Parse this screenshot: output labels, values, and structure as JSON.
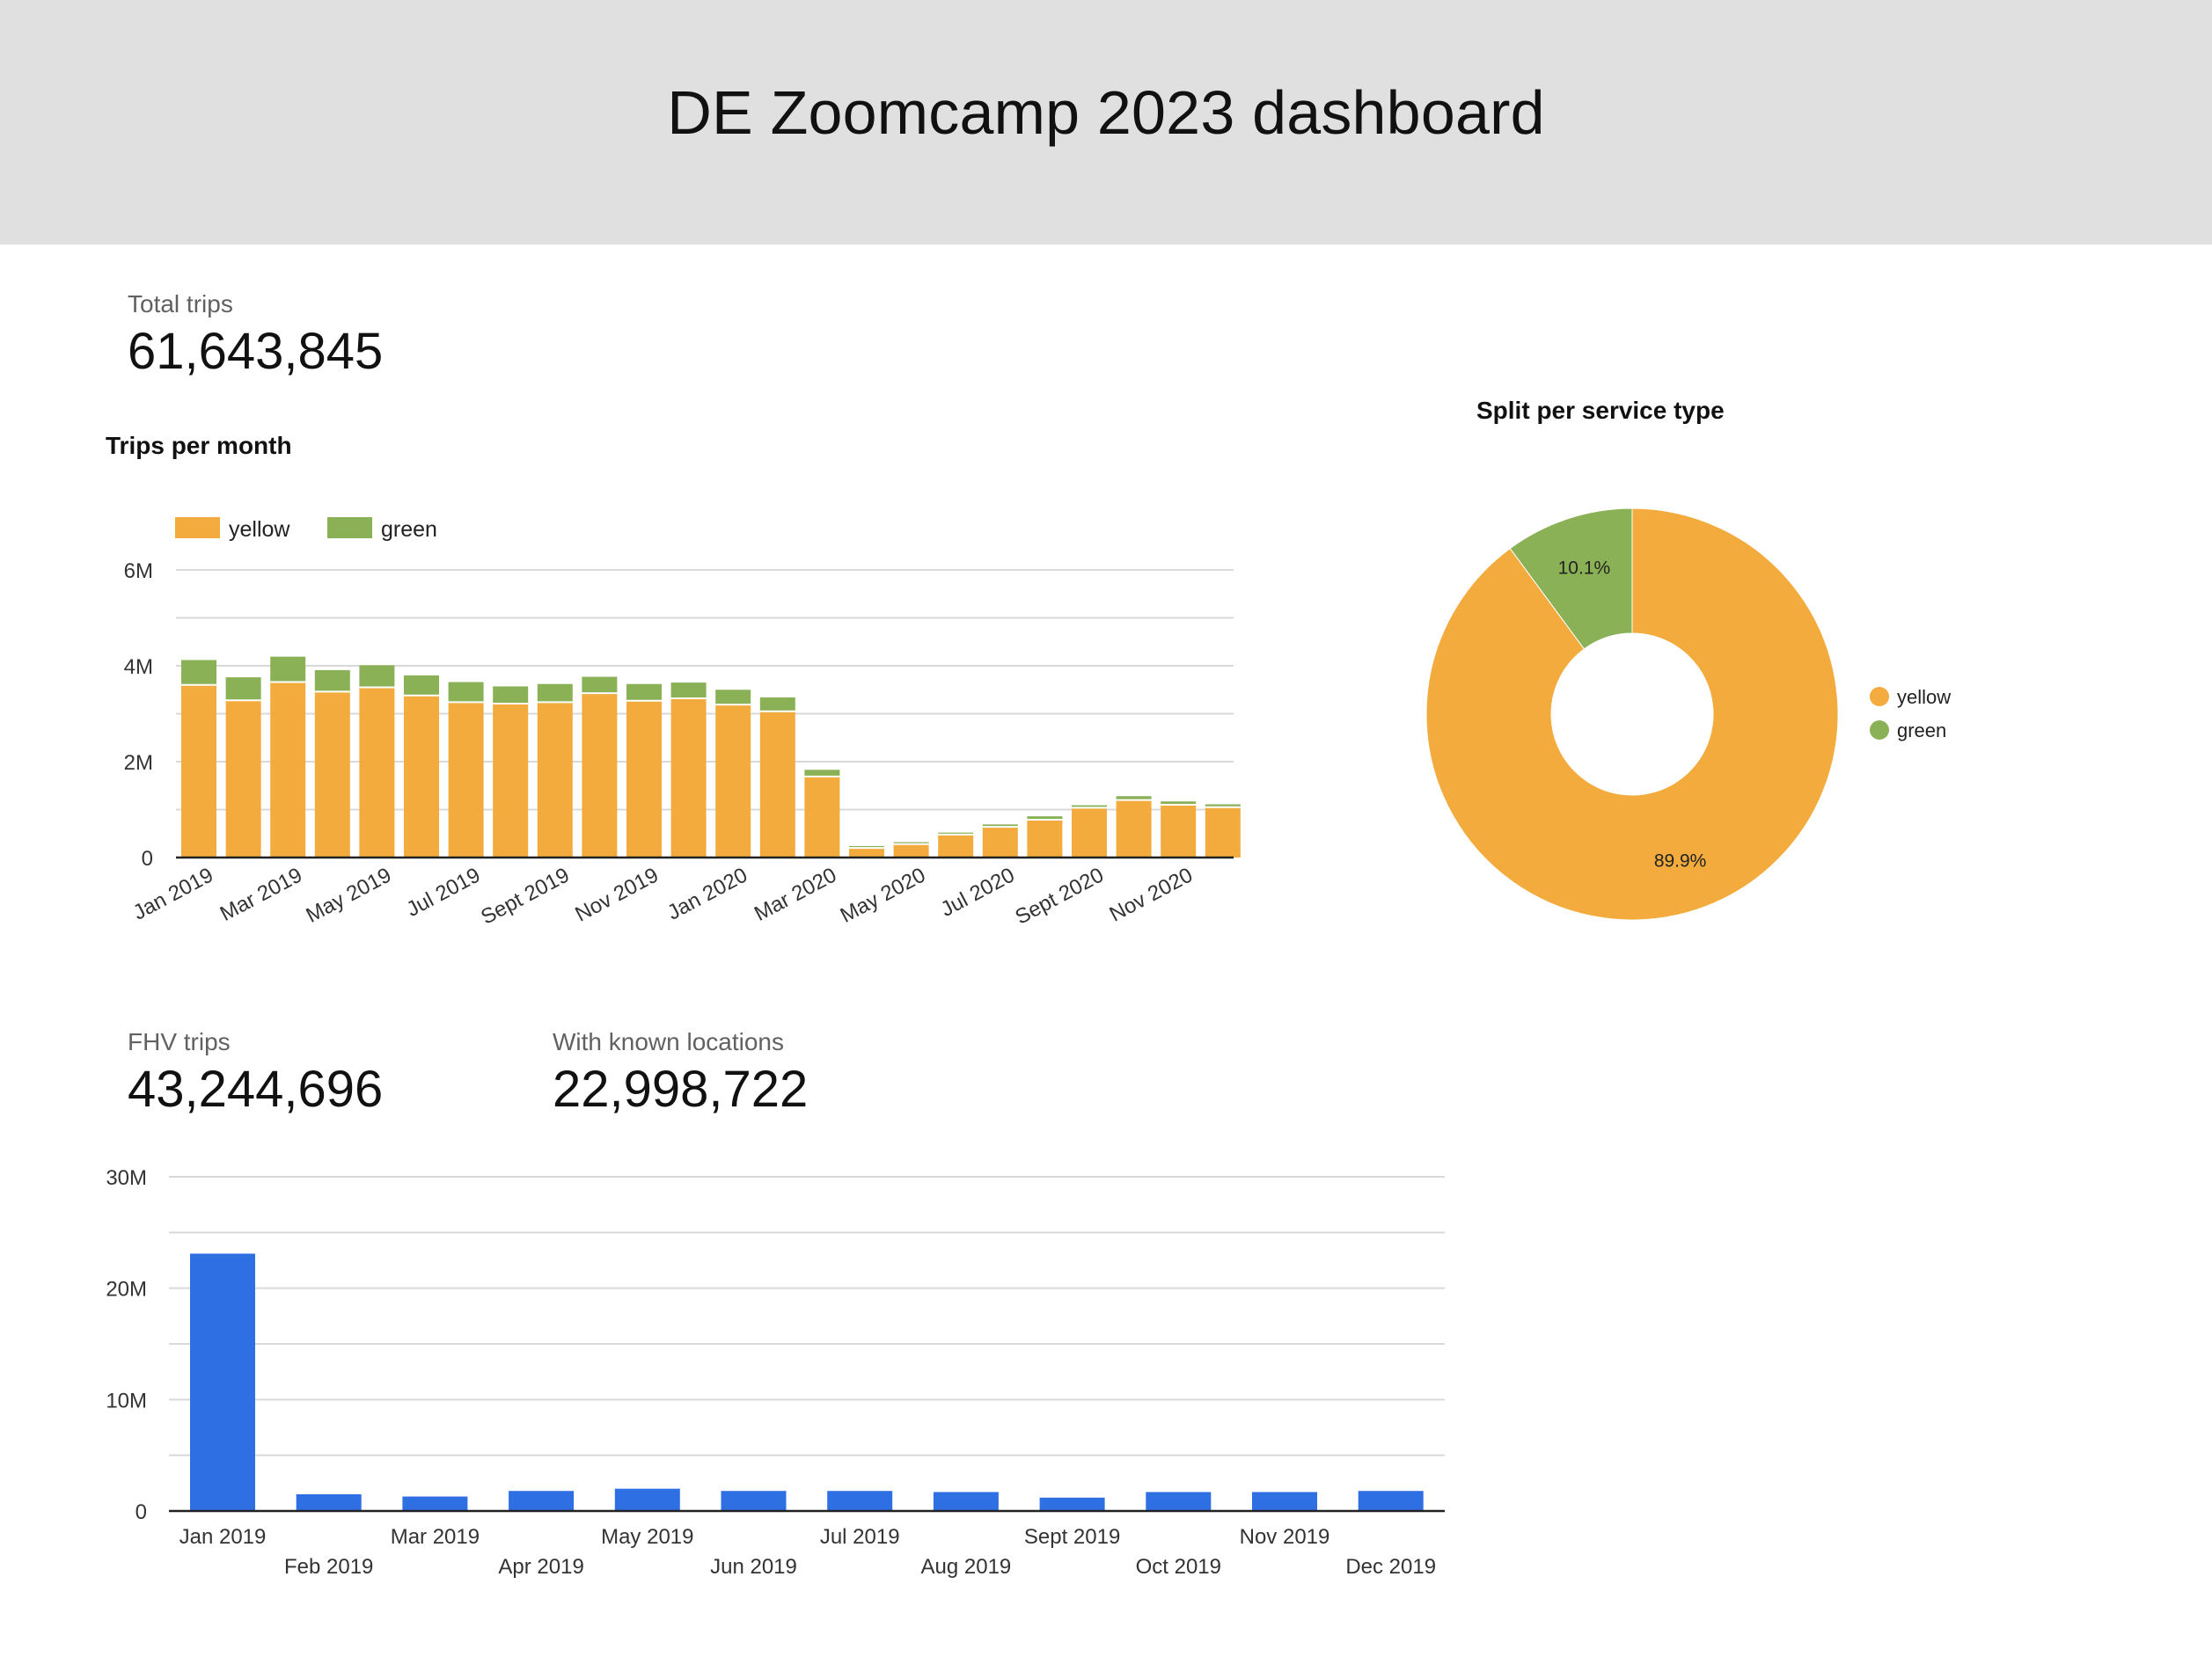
{
  "header": {
    "title": "DE Zoomcamp 2023 dashboard"
  },
  "kpis": {
    "total_trips": {
      "label": "Total trips",
      "value": "61,643,845"
    },
    "fhv_trips": {
      "label": "FHV trips",
      "value": "43,244,696"
    },
    "known_locations": {
      "label": "With known locations",
      "value": "22,998,722"
    }
  },
  "colors": {
    "yellow": "#f2ab3c",
    "green": "#8bb156",
    "blue": "#2f6fe4",
    "grid": "#d9d9d9",
    "axis": "#222222"
  },
  "chart_data": [
    {
      "id": "trips_per_month",
      "type": "bar",
      "stacked": true,
      "title": "Trips per month",
      "legend_position": "top-left",
      "ylim": [
        0,
        6000000
      ],
      "yticks": [
        0,
        2000000,
        4000000,
        6000000
      ],
      "ytick_labels": [
        "0",
        "2M",
        "4M",
        "6M"
      ],
      "grid": true,
      "categories": [
        "Jan 2019",
        "Feb 2019",
        "Mar 2019",
        "Apr 2019",
        "May 2019",
        "Jun 2019",
        "Jul 2019",
        "Aug 2019",
        "Sept 2019",
        "Oct 2019",
        "Nov 2019",
        "Dec 2019",
        "Jan 2020",
        "Feb 2020",
        "Mar 2020",
        "Apr 2020",
        "May 2020",
        "Jun 2020",
        "Jul 2020",
        "Aug 2020",
        "Sept 2020",
        "Oct 2020",
        "Nov 2020",
        "Dec 2020"
      ],
      "tick_labels": [
        "Jan 2019",
        "",
        "Mar 2019",
        "",
        "May 2019",
        "",
        "Jul 2019",
        "",
        "Sept 2019",
        "",
        "Nov 2019",
        "",
        "Jan 2020",
        "",
        "Mar 2020",
        "",
        "May 2020",
        "",
        "Jul 2020",
        "",
        "Sept 2020",
        "",
        "Nov 2020",
        ""
      ],
      "series": [
        {
          "name": "yellow",
          "values": [
            3600000,
            3280000,
            3660000,
            3460000,
            3550000,
            3380000,
            3240000,
            3210000,
            3240000,
            3430000,
            3270000,
            3320000,
            3190000,
            3050000,
            1690000,
            200000,
            280000,
            480000,
            640000,
            790000,
            1040000,
            1200000,
            1100000,
            1050000
          ]
        },
        {
          "name": "green",
          "values": [
            520000,
            480000,
            530000,
            450000,
            460000,
            420000,
            420000,
            360000,
            380000,
            340000,
            350000,
            330000,
            310000,
            290000,
            140000,
            40000,
            40000,
            40000,
            50000,
            70000,
            50000,
            80000,
            70000,
            60000
          ]
        }
      ]
    },
    {
      "id": "split_per_service_type",
      "type": "pie",
      "donut": true,
      "title": "Split per service type",
      "legend_position": "right",
      "series": [
        {
          "name": "yellow",
          "value": 89.9,
          "label": "89.9%"
        },
        {
          "name": "green",
          "value": 10.1,
          "label": "10.1%"
        }
      ]
    },
    {
      "id": "fhv_trips_per_month",
      "type": "bar",
      "title": "",
      "ylim": [
        0,
        30000000
      ],
      "yticks": [
        0,
        10000000,
        20000000,
        30000000
      ],
      "ytick_labels": [
        "0",
        "10M",
        "20M",
        "30M"
      ],
      "grid": true,
      "categories": [
        "Jan 2019",
        "Feb 2019",
        "Mar 2019",
        "Apr 2019",
        "May 2019",
        "Jun 2019",
        "Jul 2019",
        "Aug 2019",
        "Sept 2019",
        "Oct 2019",
        "Nov 2019",
        "Dec 2019"
      ],
      "values": [
        23100000,
        1500000,
        1300000,
        1800000,
        2000000,
        1800000,
        1800000,
        1700000,
        1200000,
        1700000,
        1700000,
        1800000
      ]
    }
  ]
}
